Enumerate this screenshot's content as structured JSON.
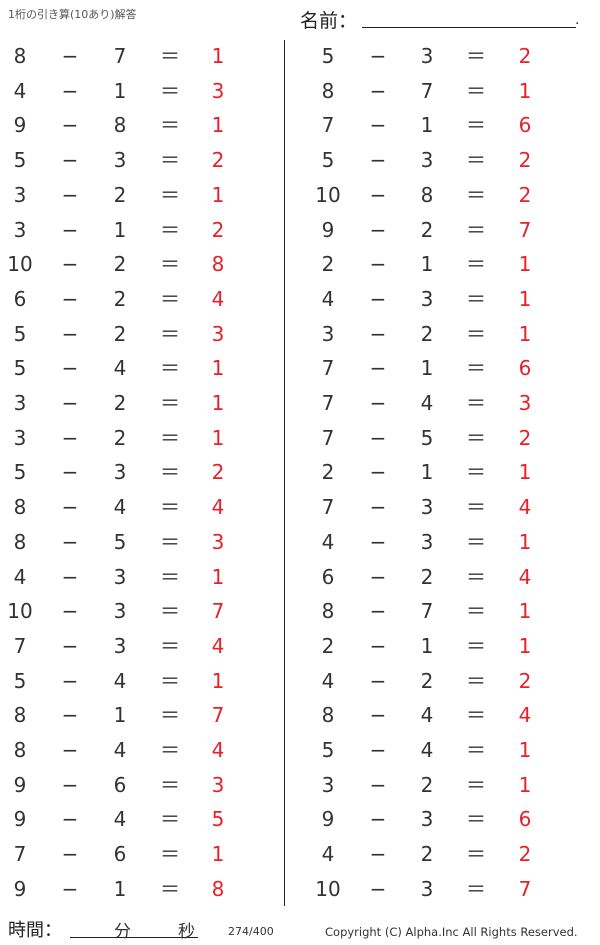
{
  "header": {
    "title": "1桁の引き算(10あり)解答",
    "name_label": "名前：",
    "name_end": "."
  },
  "operators": {
    "minus": "−",
    "equals": "＝"
  },
  "left_problems": [
    [
      8,
      7,
      1
    ],
    [
      4,
      1,
      3
    ],
    [
      9,
      8,
      1
    ],
    [
      5,
      3,
      2
    ],
    [
      3,
      2,
      1
    ],
    [
      3,
      1,
      2
    ],
    [
      10,
      2,
      8
    ],
    [
      6,
      2,
      4
    ],
    [
      5,
      2,
      3
    ],
    [
      5,
      4,
      1
    ],
    [
      3,
      2,
      1
    ],
    [
      3,
      2,
      1
    ],
    [
      5,
      3,
      2
    ],
    [
      8,
      4,
      4
    ],
    [
      8,
      5,
      3
    ],
    [
      4,
      3,
      1
    ],
    [
      10,
      3,
      7
    ],
    [
      7,
      3,
      4
    ],
    [
      5,
      4,
      1
    ],
    [
      8,
      1,
      7
    ],
    [
      8,
      4,
      4
    ],
    [
      9,
      6,
      3
    ],
    [
      9,
      4,
      5
    ],
    [
      7,
      6,
      1
    ],
    [
      9,
      1,
      8
    ]
  ],
  "right_problems": [
    [
      5,
      3,
      2
    ],
    [
      8,
      7,
      1
    ],
    [
      7,
      1,
      6
    ],
    [
      5,
      3,
      2
    ],
    [
      10,
      8,
      2
    ],
    [
      9,
      2,
      7
    ],
    [
      2,
      1,
      1
    ],
    [
      4,
      3,
      1
    ],
    [
      3,
      2,
      1
    ],
    [
      7,
      1,
      6
    ],
    [
      7,
      4,
      3
    ],
    [
      7,
      5,
      2
    ],
    [
      2,
      1,
      1
    ],
    [
      7,
      3,
      4
    ],
    [
      4,
      3,
      1
    ],
    [
      6,
      2,
      4
    ],
    [
      8,
      7,
      1
    ],
    [
      2,
      1,
      1
    ],
    [
      4,
      2,
      2
    ],
    [
      8,
      4,
      4
    ],
    [
      5,
      4,
      1
    ],
    [
      3,
      2,
      1
    ],
    [
      9,
      3,
      6
    ],
    [
      4,
      2,
      2
    ],
    [
      10,
      3,
      7
    ]
  ],
  "colors": {
    "answer": "#e8202a",
    "text": "#333333"
  },
  "footer": {
    "time_label": "時間：",
    "minutes": "分",
    "seconds": "秒",
    "page": "274/400",
    "copyright": "Copyright (C) Alpha.Inc All Rights Reserved."
  }
}
